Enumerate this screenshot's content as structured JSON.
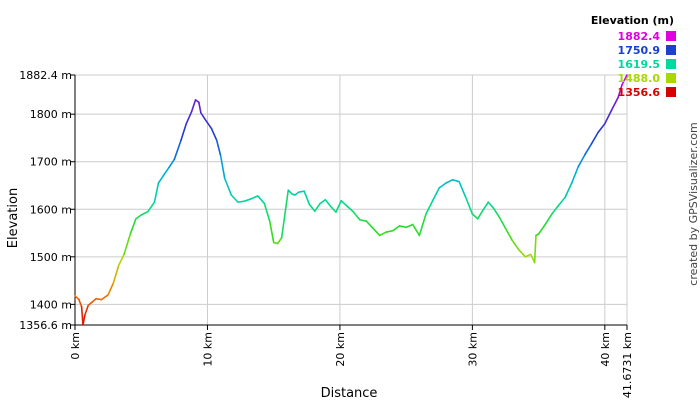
{
  "chart_data": {
    "type": "line",
    "xlabel": "Distance",
    "ylabel": "Elevation",
    "xlim": [
      0,
      41.6731
    ],
    "ylim": [
      1356.6,
      1882.4
    ],
    "x_ticks": [
      {
        "value": 0,
        "label": "0 km"
      },
      {
        "value": 10,
        "label": "10 km"
      },
      {
        "value": 20,
        "label": "20 km"
      },
      {
        "value": 30,
        "label": "30 km"
      },
      {
        "value": 40,
        "label": "40 km"
      },
      {
        "value": 41.6731,
        "label": "41.6731 km"
      }
    ],
    "y_ticks": [
      {
        "value": 1356.6,
        "label": "1356.6 m"
      },
      {
        "value": 1400,
        "label": "1400 m"
      },
      {
        "value": 1500,
        "label": "1500 m"
      },
      {
        "value": 1600,
        "label": "1600 m"
      },
      {
        "value": 1700,
        "label": "1700 m"
      },
      {
        "value": 1800,
        "label": "1800 m"
      },
      {
        "value": 1882.4,
        "label": "1882.4 m"
      }
    ],
    "grid": true,
    "legend": {
      "title": "Elevation (m)",
      "placement": "top-right",
      "entries": [
        {
          "label": "1882.4",
          "color": "#e000e0"
        },
        {
          "label": "1750.9",
          "color": "#1a40d0"
        },
        {
          "label": "1619.5",
          "color": "#00d8a0"
        },
        {
          "label": "1488.0",
          "color": "#a8d800"
        },
        {
          "label": "1356.6",
          "color": "#d80000"
        }
      ]
    },
    "color_scale": [
      {
        "value": 1356.6,
        "color": "#d80000"
      },
      {
        "value": 1422.3,
        "color": "#f07800"
      },
      {
        "value": 1488.0,
        "color": "#b8d800"
      },
      {
        "value": 1553.8,
        "color": "#30dd20"
      },
      {
        "value": 1619.5,
        "color": "#00d8a0"
      },
      {
        "value": 1685.2,
        "color": "#00a8e0"
      },
      {
        "value": 1750.9,
        "color": "#1a40d0"
      },
      {
        "value": 1816.7,
        "color": "#6020d0"
      },
      {
        "value": 1882.4,
        "color": "#e000e0"
      }
    ],
    "series": [
      {
        "x": [
          0,
          0.3,
          0.5,
          0.6,
          0.75,
          1.0,
          1.3,
          1.6,
          2.0,
          2.5,
          2.9,
          3.3,
          3.7,
          4.2,
          4.6,
          5.0,
          5.5,
          6.0,
          6.3,
          6.7,
          7.1,
          7.5,
          8.0,
          8.4,
          8.8,
          9.1,
          9.35,
          9.5,
          9.8,
          10.3,
          10.7,
          11.0,
          11.3,
          11.8,
          12.3,
          12.8,
          13.3,
          13.8,
          14.3,
          14.7,
          15.0,
          15.3,
          15.6,
          16.1,
          16.4,
          16.6,
          16.9,
          17.3,
          17.7,
          18.1,
          18.5,
          18.9,
          19.3,
          19.7,
          20.1,
          20.6,
          21.0,
          21.5,
          22.0,
          22.5,
          23.0,
          23.5,
          24.0,
          24.5,
          25.0,
          25.5,
          26.0,
          26.5,
          27.0,
          27.5,
          28.0,
          28.5,
          29.0,
          29.5,
          30.0,
          30.4,
          30.8,
          31.2,
          31.6,
          32.0,
          32.5,
          33.0,
          33.5,
          34.0,
          34.4,
          34.7,
          34.8,
          35.0,
          35.5,
          36.0,
          36.5,
          37.0,
          37.5,
          38.0,
          38.5,
          39.0,
          39.5,
          40.0,
          40.5,
          41.0,
          41.3,
          41.6731
        ],
        "y": [
          1418,
          1410,
          1395,
          1356.6,
          1378,
          1398,
          1405,
          1412,
          1410,
          1420,
          1445,
          1482,
          1505,
          1550,
          1580,
          1588,
          1595,
          1615,
          1655,
          1672,
          1688,
          1705,
          1745,
          1780,
          1805,
          1830,
          1825,
          1803,
          1790,
          1770,
          1745,
          1712,
          1665,
          1630,
          1615,
          1617,
          1622,
          1628,
          1612,
          1575,
          1530,
          1528,
          1540,
          1640,
          1632,
          1630,
          1636,
          1638,
          1610,
          1596,
          1612,
          1620,
          1606,
          1594,
          1618,
          1605,
          1595,
          1578,
          1575,
          1560,
          1545,
          1552,
          1555,
          1565,
          1562,
          1568,
          1545,
          1590,
          1618,
          1645,
          1655,
          1662,
          1658,
          1625,
          1590,
          1580,
          1598,
          1615,
          1602,
          1585,
          1560,
          1535,
          1515,
          1500,
          1505,
          1488,
          1545,
          1548,
          1568,
          1590,
          1608,
          1625,
          1655,
          1690,
          1715,
          1738,
          1762,
          1780,
          1808,
          1835,
          1862,
          1882.4
        ]
      }
    ]
  },
  "credit": "created by GPSVisualizer.com"
}
